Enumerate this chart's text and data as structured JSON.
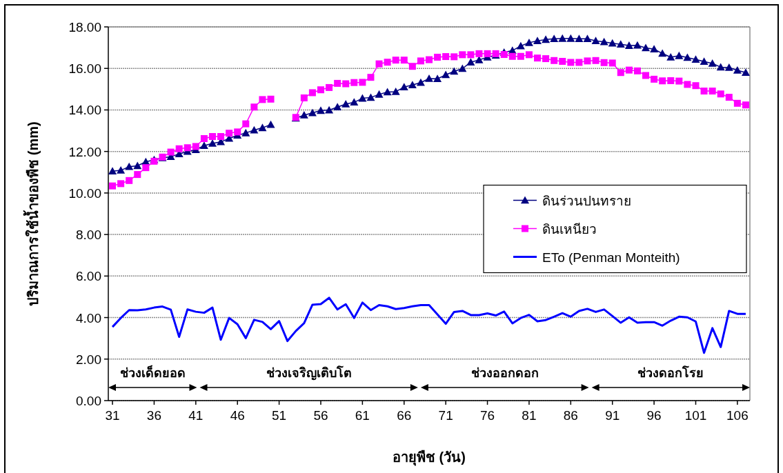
{
  "chart_data": {
    "type": "line",
    "xlabel": "อายุพืช (วัน)",
    "ylabel": "ปริมาณการใช้น้ำของพืช (mm)",
    "x": [
      31,
      32,
      33,
      34,
      35,
      36,
      37,
      38,
      39,
      40,
      41,
      42,
      43,
      44,
      45,
      46,
      47,
      48,
      49,
      50,
      51,
      52,
      53,
      54,
      55,
      56,
      57,
      58,
      59,
      60,
      61,
      62,
      63,
      64,
      65,
      66,
      67,
      68,
      69,
      70,
      71,
      72,
      73,
      74,
      75,
      76,
      77,
      78,
      79,
      80,
      81,
      82,
      83,
      84,
      85,
      86,
      87,
      88,
      89,
      90,
      91,
      92,
      93,
      94,
      95,
      96,
      97,
      98,
      99,
      100,
      101,
      102,
      103,
      104,
      105,
      106,
      107
    ],
    "series": [
      {
        "name": "ดินร่วนปนทราย",
        "color": "#000080",
        "marker": "triangle",
        "values": [
          11.05,
          11.09,
          11.27,
          11.31,
          11.5,
          11.6,
          11.69,
          11.75,
          11.88,
          12.0,
          12.08,
          12.28,
          12.39,
          12.46,
          12.63,
          12.78,
          12.89,
          13.03,
          13.14,
          13.29,
          null,
          null,
          13.6,
          13.75,
          13.86,
          13.97,
          13.99,
          14.14,
          14.28,
          14.37,
          14.56,
          14.6,
          14.75,
          14.86,
          14.88,
          15.1,
          15.2,
          15.32,
          15.51,
          15.5,
          15.69,
          15.86,
          15.99,
          16.3,
          16.41,
          16.54,
          16.63,
          16.77,
          16.86,
          17.08,
          17.24,
          17.33,
          17.39,
          17.43,
          17.44,
          17.44,
          17.43,
          17.43,
          17.33,
          17.28,
          17.21,
          17.16,
          17.1,
          17.11,
          16.99,
          16.93,
          16.72,
          16.54,
          16.61,
          16.52,
          16.43,
          16.33,
          16.24,
          16.06,
          16.04,
          15.91,
          15.8
        ]
      },
      {
        "name": "ดินเหนียว",
        "color": "#ff00ff",
        "marker": "square",
        "values": [
          10.34,
          10.45,
          10.6,
          10.89,
          11.22,
          11.53,
          11.73,
          11.97,
          12.13,
          12.18,
          12.24,
          12.62,
          12.72,
          12.72,
          12.88,
          12.94,
          13.33,
          14.14,
          14.5,
          14.52,
          null,
          null,
          13.64,
          14.58,
          14.83,
          14.97,
          15.08,
          15.28,
          15.26,
          15.32,
          15.33,
          15.57,
          16.22,
          16.3,
          16.4,
          16.4,
          16.1,
          16.36,
          16.42,
          16.54,
          16.57,
          16.56,
          16.66,
          16.66,
          16.71,
          16.71,
          16.71,
          16.67,
          16.58,
          16.58,
          16.66,
          16.5,
          16.47,
          16.38,
          16.34,
          16.29,
          16.29,
          16.36,
          16.38,
          16.28,
          16.26,
          15.8,
          15.92,
          15.88,
          15.66,
          15.48,
          15.4,
          15.41,
          15.39,
          15.23,
          15.17,
          14.91,
          14.91,
          14.77,
          14.61,
          14.32,
          14.24
        ]
      },
      {
        "name": "ETo (Penman Monteith)",
        "color": "#0000ff",
        "marker": "none",
        "values": [
          3.55,
          3.98,
          4.36,
          4.35,
          4.39,
          4.48,
          4.53,
          4.38,
          3.07,
          4.39,
          4.28,
          4.23,
          4.48,
          2.93,
          3.98,
          3.68,
          3.01,
          3.89,
          3.79,
          3.44,
          3.83,
          2.87,
          3.35,
          3.73,
          4.62,
          4.65,
          4.95,
          4.39,
          4.64,
          3.98,
          4.72,
          4.36,
          4.6,
          4.54,
          4.41,
          4.46,
          4.54,
          4.6,
          4.6,
          4.15,
          3.7,
          4.27,
          4.32,
          4.12,
          4.12,
          4.2,
          4.1,
          4.29,
          3.72,
          3.98,
          4.13,
          3.82,
          3.88,
          4.04,
          4.21,
          4.04,
          4.32,
          4.42,
          4.27,
          4.39,
          4.07,
          3.75,
          4.01,
          3.75,
          3.78,
          3.78,
          3.61,
          3.85,
          4.04,
          4.01,
          3.81,
          2.3,
          3.49,
          2.58,
          4.32,
          4.18,
          4.18
        ]
      }
    ],
    "xlim": [
      30.5,
      107.5
    ],
    "xticks": [
      31,
      36,
      41,
      46,
      51,
      56,
      61,
      66,
      71,
      76,
      81,
      86,
      91,
      96,
      101,
      106
    ],
    "ylim": [
      0,
      18
    ],
    "yticks": [
      {
        "value": 0,
        "label": "0.00"
      },
      {
        "value": 2,
        "label": "2.00"
      },
      {
        "value": 4,
        "label": "4.00"
      },
      {
        "value": 6,
        "label": "6.00"
      },
      {
        "value": 8,
        "label": "8.00"
      },
      {
        "value": 10,
        "label": "10.00"
      },
      {
        "value": 12,
        "label": "12.00"
      },
      {
        "value": 14,
        "label": "14.00"
      },
      {
        "value": 16,
        "label": "16.00"
      },
      {
        "value": 18,
        "label": "18.00"
      }
    ],
    "grid": "y",
    "legend": "right",
    "annotations": [
      "ช่วงเด็ดยอด",
      "ช่วงเจริญเติบโต",
      "ช่วงออกดอก",
      "ช่วงดอกโรย"
    ]
  }
}
